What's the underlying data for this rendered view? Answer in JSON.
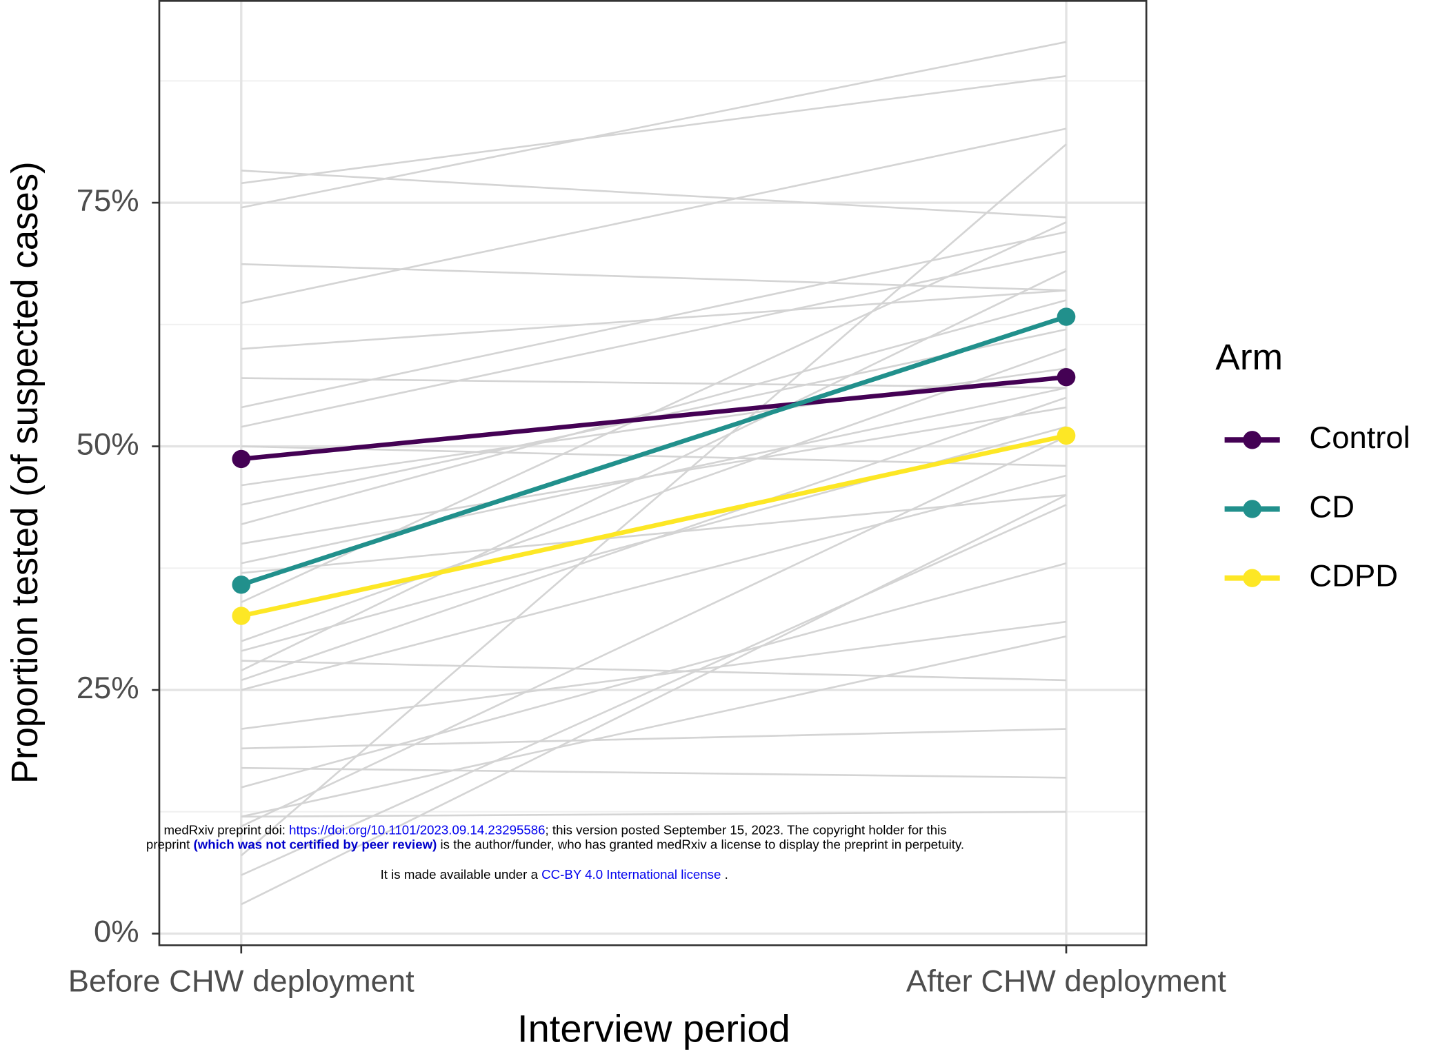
{
  "chart_data": {
    "type": "line",
    "x_label": "Interview period",
    "y_label": "Proportion tested (of suspected cases)",
    "categories": [
      "Before CHW deployment",
      "After CHW deployment"
    ],
    "ylim": [
      -1.2,
      95.8
    ],
    "yticks": [
      {
        "value": 0,
        "label": "0%"
      },
      {
        "value": 25,
        "label": "25%"
      },
      {
        "value": 50,
        "label": "50%"
      },
      {
        "value": 75,
        "label": "75%"
      }
    ],
    "minor_yticks": [
      12.5,
      37.5,
      62.5,
      87.5
    ],
    "grid": true,
    "legend_title": "Arm",
    "legend_position": "right",
    "background_lines": {
      "color": "#d4d4d4",
      "values": [
        [
          78.3,
          73.5
        ],
        [
          77,
          88
        ],
        [
          74.5,
          91.5
        ],
        [
          68.7,
          66
        ],
        [
          64.7,
          82.6
        ],
        [
          60,
          66
        ],
        [
          57,
          56
        ],
        [
          54,
          72
        ],
        [
          52,
          70
        ],
        [
          50,
          48
        ],
        [
          46,
          58
        ],
        [
          44,
          62
        ],
        [
          42,
          65
        ],
        [
          40,
          54
        ],
        [
          38,
          56
        ],
        [
          37,
          45
        ],
        [
          34,
          73
        ],
        [
          30,
          60
        ],
        [
          29,
          52
        ],
        [
          28,
          26
        ],
        [
          27,
          68
        ],
        [
          26,
          55
        ],
        [
          25,
          47
        ],
        [
          21,
          32
        ],
        [
          19,
          21
        ],
        [
          17,
          16
        ],
        [
          15,
          38
        ],
        [
          12,
          12.5
        ],
        [
          12,
          30.5
        ],
        [
          11,
          51
        ],
        [
          8,
          81
        ],
        [
          6,
          44
        ],
        [
          3,
          45
        ]
      ]
    },
    "series": [
      {
        "name": "Control",
        "color": "#440154",
        "values": [
          48.7,
          57.1
        ]
      },
      {
        "name": "CD",
        "color": "#21908c",
        "values": [
          35.8,
          63.3
        ]
      },
      {
        "name": "CDPD",
        "color": "#fde725",
        "values": [
          32.6,
          51.1
        ]
      }
    ]
  },
  "watermark": {
    "line1": [
      "medRxiv preprint doi: ",
      "https://doi.org/10.1101/2023.09.14.23295586",
      "; this version posted September 15, 2023. The copyright holder for this"
    ],
    "line2": [
      "preprint ",
      "(which was not certified by peer review)",
      " is the author/funder, who has granted medRxiv a license to display the preprint in perpetuity."
    ],
    "line3": [
      "It is made available under a ",
      "CC-BY 4.0 International license",
      " ."
    ]
  }
}
